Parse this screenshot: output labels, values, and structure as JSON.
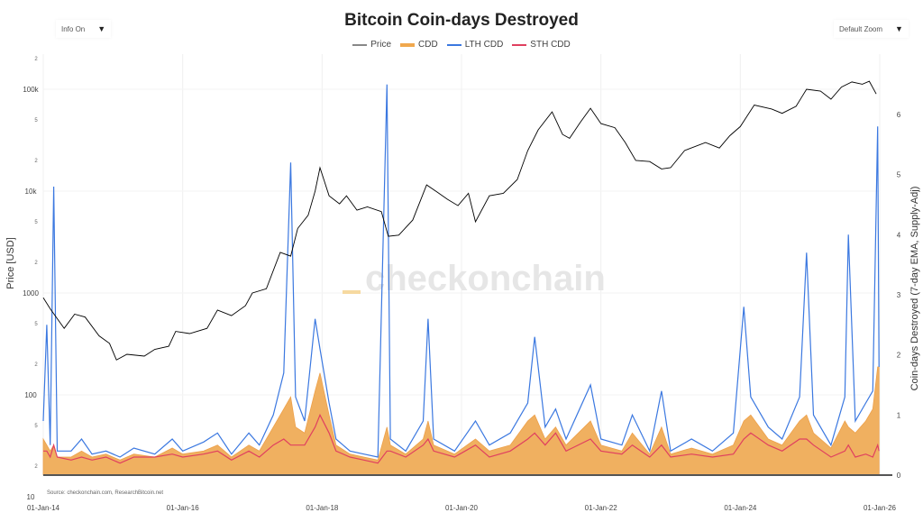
{
  "controls": {
    "info_label": "Info On",
    "zoom_label": "Default Zoom",
    "arrow": "▼"
  },
  "watermark": "checkonchain",
  "source": "Source: checkonchain.com, ResearchBitcoin.net",
  "chart_data": {
    "type": "line",
    "title": "Bitcoin Coin-days Destroyed",
    "legend": [
      {
        "name": "Price",
        "color": "#000000"
      },
      {
        "name": "CDD",
        "color": "#f0a84e"
      },
      {
        "name": "LTH CDD",
        "color": "#3b78e0"
      },
      {
        "name": "STH CDD",
        "color": "#e0405f"
      }
    ],
    "legend_placement": "top-center",
    "xlabel": "",
    "x_ticks": [
      "01-Jan-14",
      "01-Jan-16",
      "01-Jan-18",
      "01-Jan-20",
      "01-Jan-22",
      "01-Jan-24",
      "01-Jan-26"
    ],
    "x_tick_years": [
      2014,
      2016,
      2018,
      2020,
      2022,
      2024,
      2026
    ],
    "xlim": [
      2014,
      2026
    ],
    "y_left": {
      "label": "Price [USD]",
      "scale": "log",
      "range": [
        10,
        200000
      ],
      "major_ticks": [
        {
          "v": 10,
          "t": "10"
        },
        {
          "v": 100,
          "t": "100"
        },
        {
          "v": 1000,
          "t": "1000"
        },
        {
          "v": 10000,
          "t": "10k"
        },
        {
          "v": 100000,
          "t": "100k"
        }
      ],
      "minor_ticks": [
        {
          "v": 20,
          "t": "2"
        },
        {
          "v": 50,
          "t": "5"
        },
        {
          "v": 200,
          "t": "2"
        },
        {
          "v": 500,
          "t": "5"
        },
        {
          "v": 2000,
          "t": "2"
        },
        {
          "v": 5000,
          "t": "5"
        },
        {
          "v": 20000,
          "t": "2"
        },
        {
          "v": 50000,
          "t": "5"
        },
        {
          "v": 200000,
          "t": "2"
        }
      ]
    },
    "y_right": {
      "label": "Coin-days Destroyed (7-day EMA, Supply-Adj)",
      "range": [
        0,
        6
      ],
      "ticks": [
        0,
        1,
        2,
        3,
        4,
        5,
        6
      ]
    },
    "price": [
      [
        2014.0,
        900
      ],
      [
        2014.1,
        700
      ],
      [
        2014.3,
        450
      ],
      [
        2014.45,
        620
      ],
      [
        2014.6,
        580
      ],
      [
        2014.8,
        380
      ],
      [
        2014.95,
        320
      ],
      [
        2015.05,
        220
      ],
      [
        2015.2,
        250
      ],
      [
        2015.45,
        240
      ],
      [
        2015.6,
        280
      ],
      [
        2015.8,
        300
      ],
      [
        2015.9,
        420
      ],
      [
        2016.1,
        400
      ],
      [
        2016.35,
        450
      ],
      [
        2016.5,
        680
      ],
      [
        2016.7,
        600
      ],
      [
        2016.9,
        750
      ],
      [
        2017.0,
        1000
      ],
      [
        2017.2,
        1100
      ],
      [
        2017.4,
        2500
      ],
      [
        2017.55,
        2300
      ],
      [
        2017.65,
        4300
      ],
      [
        2017.8,
        5800
      ],
      [
        2017.9,
        10000
      ],
      [
        2017.97,
        17000
      ],
      [
        2018.1,
        9000
      ],
      [
        2018.25,
        7500
      ],
      [
        2018.35,
        9000
      ],
      [
        2018.5,
        6500
      ],
      [
        2018.65,
        7000
      ],
      [
        2018.85,
        6300
      ],
      [
        2018.95,
        3600
      ],
      [
        2019.1,
        3700
      ],
      [
        2019.3,
        5200
      ],
      [
        2019.5,
        11500
      ],
      [
        2019.65,
        9800
      ],
      [
        2019.8,
        8300
      ],
      [
        2019.95,
        7200
      ],
      [
        2020.1,
        9500
      ],
      [
        2020.2,
        5000
      ],
      [
        2020.4,
        9000
      ],
      [
        2020.6,
        9500
      ],
      [
        2020.8,
        13000
      ],
      [
        2020.95,
        25000
      ],
      [
        2021.1,
        40000
      ],
      [
        2021.3,
        60000
      ],
      [
        2021.45,
        36000
      ],
      [
        2021.55,
        33000
      ],
      [
        2021.7,
        47000
      ],
      [
        2021.85,
        65000
      ],
      [
        2022.0,
        46000
      ],
      [
        2022.2,
        42000
      ],
      [
        2022.35,
        30000
      ],
      [
        2022.5,
        20000
      ],
      [
        2022.7,
        19500
      ],
      [
        2022.87,
        16500
      ],
      [
        2023.0,
        17000
      ],
      [
        2023.2,
        25000
      ],
      [
        2023.5,
        30000
      ],
      [
        2023.7,
        26500
      ],
      [
        2023.85,
        35000
      ],
      [
        2024.0,
        43000
      ],
      [
        2024.2,
        70000
      ],
      [
        2024.45,
        64000
      ],
      [
        2024.6,
        58000
      ],
      [
        2024.8,
        68000
      ],
      [
        2024.95,
        100000
      ],
      [
        2025.15,
        96000
      ],
      [
        2025.3,
        80000
      ],
      [
        2025.45,
        105000
      ],
      [
        2025.6,
        118000
      ],
      [
        2025.75,
        112000
      ],
      [
        2025.85,
        120000
      ],
      [
        2025.95,
        90000
      ]
    ],
    "cdd_rows_cols": [
      "t",
      "cdd",
      "lth",
      "sth"
    ],
    "cdd_rows": [
      [
        2014.0,
        0.6,
        0.9,
        0.4
      ],
      [
        2014.05,
        0.5,
        2.5,
        0.4
      ],
      [
        2014.1,
        0.4,
        0.5,
        0.3
      ],
      [
        2014.15,
        0.5,
        4.8,
        0.5
      ],
      [
        2014.2,
        0.3,
        0.4,
        0.3
      ],
      [
        2014.4,
        0.3,
        0.4,
        0.25
      ],
      [
        2014.55,
        0.4,
        0.6,
        0.3
      ],
      [
        2014.7,
        0.3,
        0.35,
        0.25
      ],
      [
        2014.9,
        0.35,
        0.4,
        0.3
      ],
      [
        2015.1,
        0.25,
        0.3,
        0.2
      ],
      [
        2015.3,
        0.35,
        0.45,
        0.3
      ],
      [
        2015.6,
        0.3,
        0.35,
        0.3
      ],
      [
        2015.85,
        0.45,
        0.6,
        0.35
      ],
      [
        2016.0,
        0.35,
        0.4,
        0.3
      ],
      [
        2016.3,
        0.4,
        0.55,
        0.35
      ],
      [
        2016.5,
        0.5,
        0.7,
        0.4
      ],
      [
        2016.7,
        0.3,
        0.35,
        0.25
      ],
      [
        2016.95,
        0.5,
        0.7,
        0.4
      ],
      [
        2017.1,
        0.4,
        0.5,
        0.3
      ],
      [
        2017.3,
        0.8,
        1.0,
        0.5
      ],
      [
        2017.45,
        1.1,
        1.7,
        0.6
      ],
      [
        2017.55,
        1.3,
        5.2,
        0.5
      ],
      [
        2017.62,
        0.8,
        1.3,
        0.5
      ],
      [
        2017.75,
        0.7,
        0.9,
        0.5
      ],
      [
        2017.9,
        1.4,
        2.6,
        0.8
      ],
      [
        2017.97,
        1.7,
        2.1,
        1.0
      ],
      [
        2018.1,
        1.0,
        1.2,
        0.7
      ],
      [
        2018.2,
        0.5,
        0.6,
        0.4
      ],
      [
        2018.4,
        0.35,
        0.4,
        0.3
      ],
      [
        2018.6,
        0.3,
        0.35,
        0.25
      ],
      [
        2018.8,
        0.25,
        0.3,
        0.2
      ],
      [
        2018.93,
        0.8,
        6.5,
        0.4
      ],
      [
        2018.98,
        0.5,
        0.6,
        0.4
      ],
      [
        2019.2,
        0.35,
        0.4,
        0.3
      ],
      [
        2019.45,
        0.6,
        0.9,
        0.5
      ],
      [
        2019.52,
        0.9,
        2.6,
        0.6
      ],
      [
        2019.6,
        0.5,
        0.6,
        0.4
      ],
      [
        2019.9,
        0.35,
        0.4,
        0.3
      ],
      [
        2020.2,
        0.6,
        0.9,
        0.5
      ],
      [
        2020.4,
        0.4,
        0.5,
        0.3
      ],
      [
        2020.7,
        0.5,
        0.7,
        0.4
      ],
      [
        2020.95,
        0.9,
        1.2,
        0.6
      ],
      [
        2021.05,
        1.0,
        2.3,
        0.7
      ],
      [
        2021.2,
        0.6,
        0.8,
        0.5
      ],
      [
        2021.35,
        0.8,
        1.1,
        0.7
      ],
      [
        2021.5,
        0.5,
        0.6,
        0.4
      ],
      [
        2021.85,
        0.9,
        1.5,
        0.6
      ],
      [
        2022.0,
        0.5,
        0.6,
        0.4
      ],
      [
        2022.3,
        0.4,
        0.5,
        0.35
      ],
      [
        2022.45,
        0.7,
        1.0,
        0.5
      ],
      [
        2022.7,
        0.35,
        0.4,
        0.3
      ],
      [
        2022.87,
        0.8,
        1.4,
        0.5
      ],
      [
        2023.0,
        0.35,
        0.4,
        0.3
      ],
      [
        2023.3,
        0.45,
        0.6,
        0.35
      ],
      [
        2023.6,
        0.35,
        0.4,
        0.3
      ],
      [
        2023.9,
        0.5,
        0.7,
        0.35
      ],
      [
        2024.05,
        0.9,
        2.8,
        0.6
      ],
      [
        2024.15,
        1.0,
        1.3,
        0.7
      ],
      [
        2024.4,
        0.6,
        0.8,
        0.5
      ],
      [
        2024.6,
        0.5,
        0.6,
        0.4
      ],
      [
        2024.85,
        0.9,
        1.3,
        0.6
      ],
      [
        2024.95,
        1.0,
        3.7,
        0.6
      ],
      [
        2025.05,
        0.7,
        1.0,
        0.5
      ],
      [
        2025.3,
        0.45,
        0.5,
        0.3
      ],
      [
        2025.5,
        0.9,
        1.3,
        0.4
      ],
      [
        2025.55,
        0.8,
        4.0,
        0.5
      ],
      [
        2025.65,
        0.7,
        0.9,
        0.3
      ],
      [
        2025.8,
        0.9,
        1.2,
        0.35
      ],
      [
        2025.9,
        1.1,
        1.4,
        0.3
      ],
      [
        2025.97,
        1.8,
        5.8,
        0.5
      ],
      [
        2025.99,
        1.8,
        1.8,
        0.4
      ]
    ]
  }
}
